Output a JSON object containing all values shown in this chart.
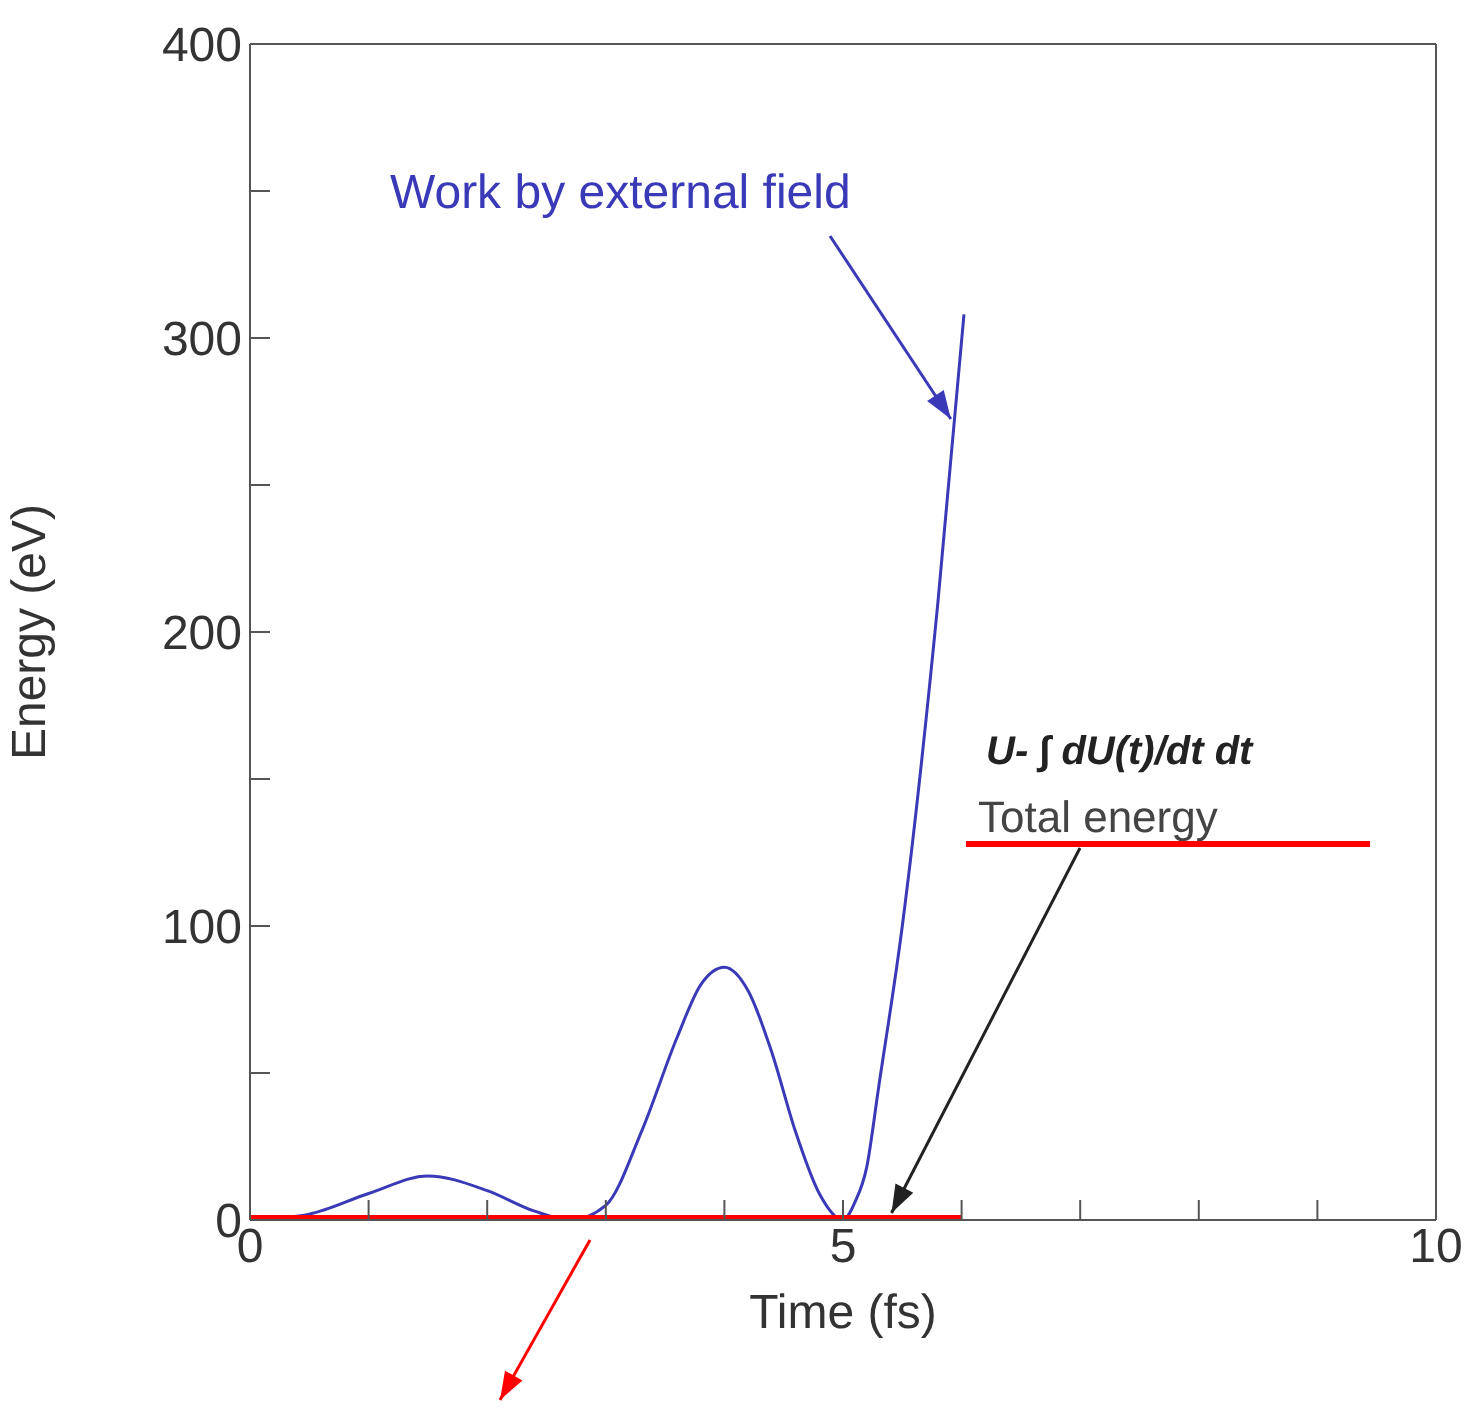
{
  "chart_data": {
    "type": "line",
    "xlabel": "Time (fs)",
    "ylabel": "Energy (eV)",
    "xlim": [
      0,
      10
    ],
    "ylim": [
      0,
      400
    ],
    "xticks": [
      0,
      {
        "value": 1,
        "label": null
      },
      {
        "value": 2,
        "label": null
      },
      {
        "value": 3,
        "label": null
      },
      {
        "value": 4,
        "label": null
      },
      5,
      {
        "value": 6,
        "label": null
      },
      {
        "value": 7,
        "label": null
      },
      {
        "value": 8,
        "label": null
      },
      {
        "value": 9,
        "label": null
      },
      10
    ],
    "yticks": [
      0,
      {
        "value": 50,
        "label": null
      },
      100,
      {
        "value": 150,
        "label": null
      },
      200,
      {
        "value": 250,
        "label": null
      },
      300,
      {
        "value": 350,
        "label": null
      },
      400
    ],
    "series": [
      {
        "color": "#3a3ab8",
        "x": [
          0,
          0.5,
          1.0,
          1.5,
          2.0,
          2.4,
          2.7,
          3.0,
          3.3,
          3.6,
          3.8,
          4.0,
          4.2,
          4.4,
          4.6,
          4.8,
          5.0,
          5.1,
          5.2,
          5.3,
          5.5,
          5.8,
          6.02
        ],
        "values": [
          0,
          2,
          9,
          15,
          10,
          3,
          0,
          5,
          30,
          62,
          80,
          86,
          78,
          57,
          30,
          9,
          0,
          6,
          18,
          45,
          100,
          210,
          308
        ]
      },
      {
        "name": "Total energy",
        "color": "#ff0000",
        "x": [
          0,
          6
        ],
        "values": [
          0,
          0
        ]
      }
    ],
    "annotations": [
      {
        "text": "Work by external field",
        "x": 5.95,
        "y": 272
      },
      "U- ∫ dU(t)/dt dt"
    ],
    "legend": "right",
    "marker": "none",
    "line_style": "solid"
  }
}
